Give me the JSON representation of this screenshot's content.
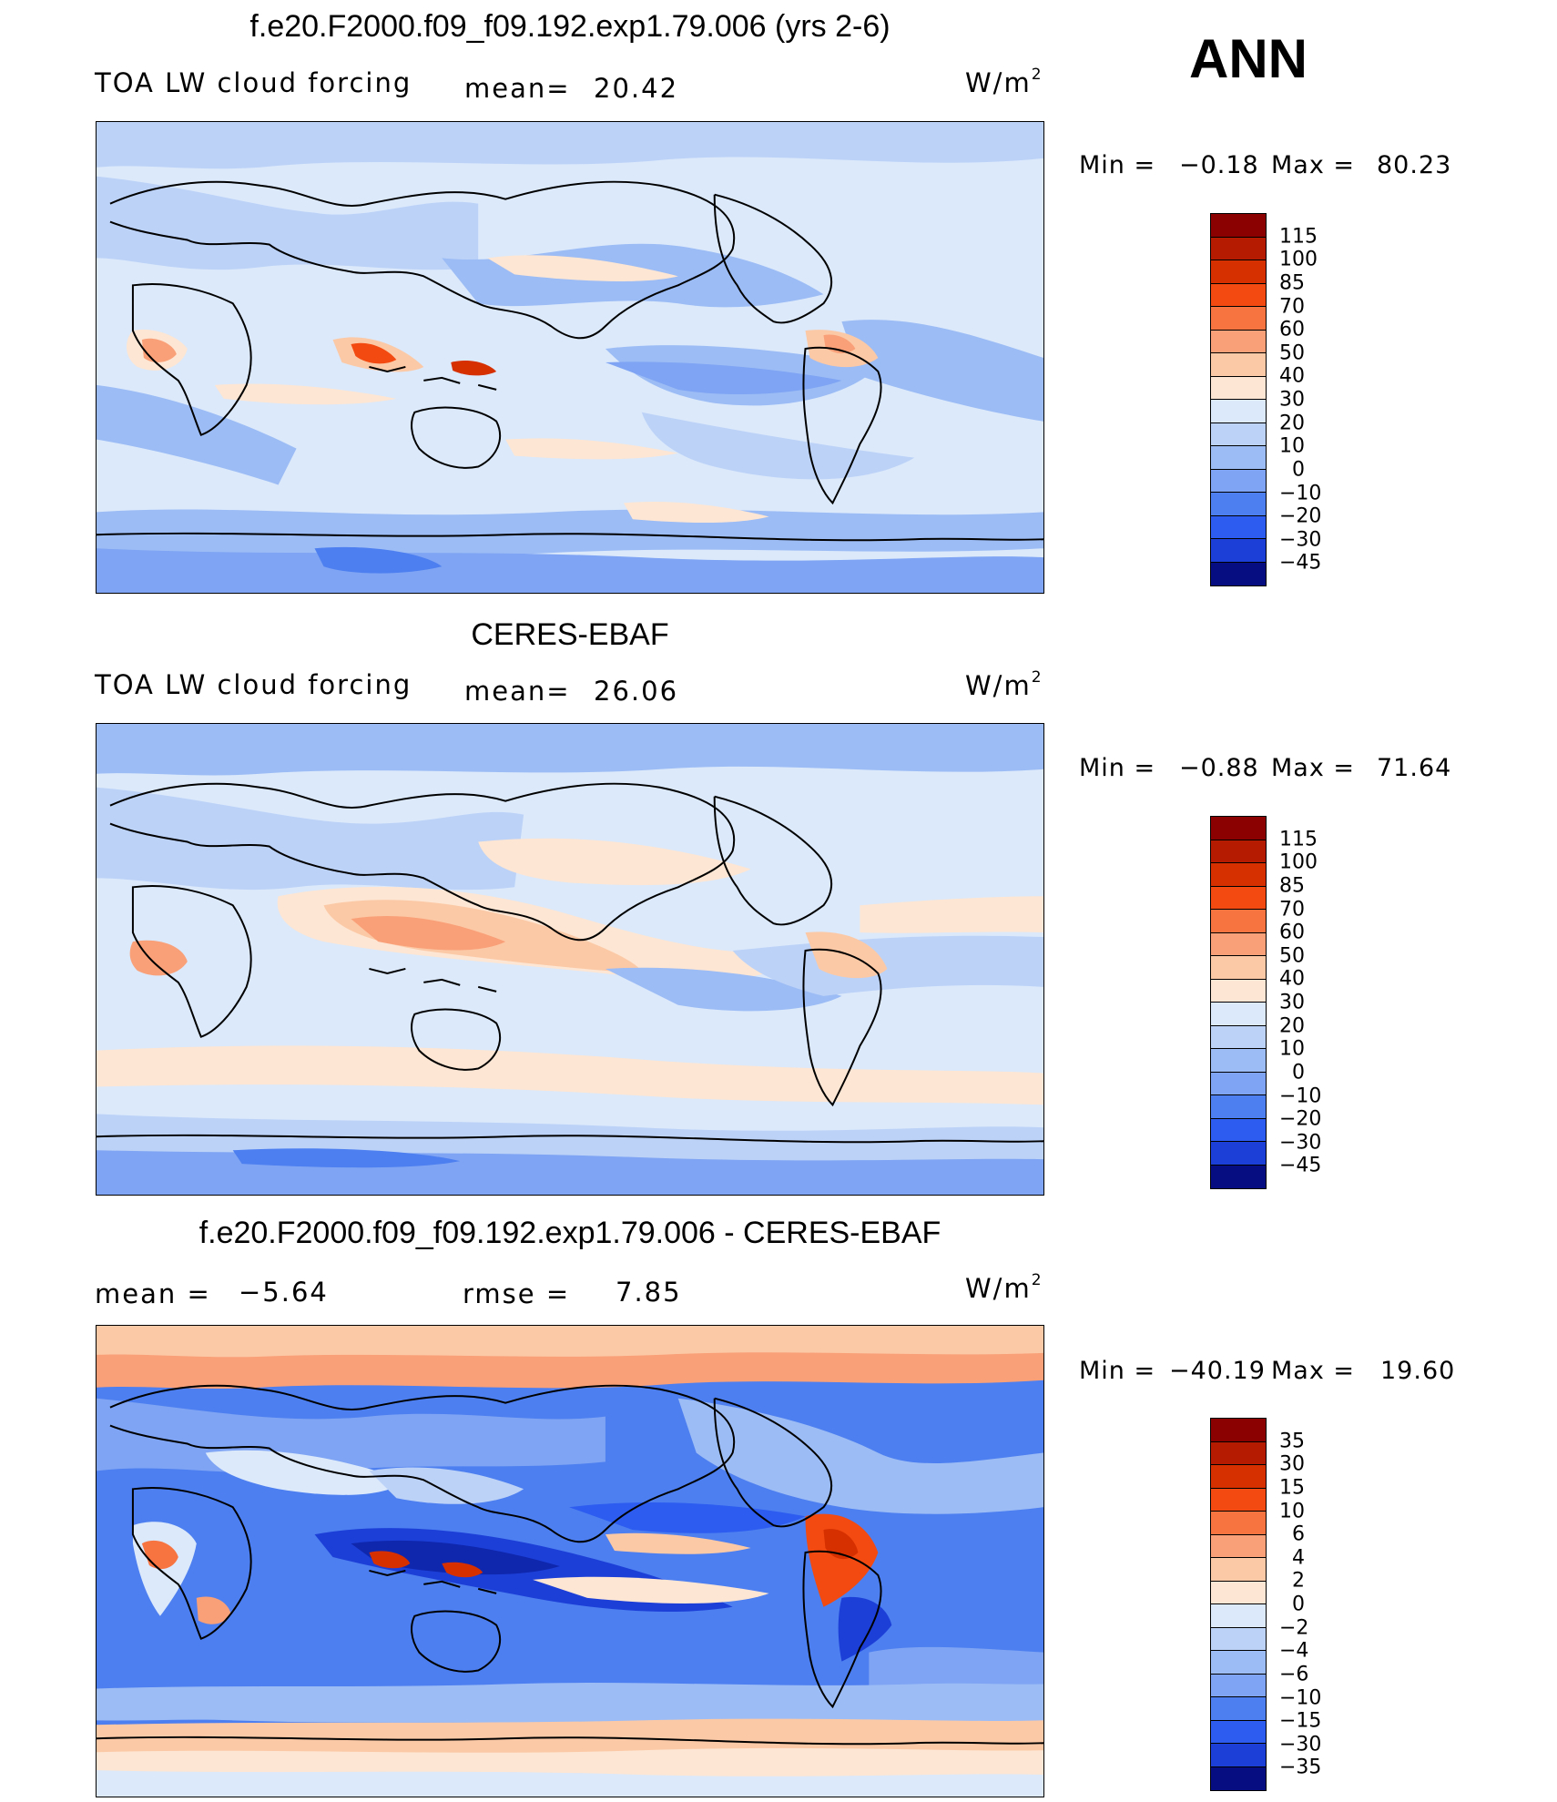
{
  "season": "ANN",
  "units_text": "W/m",
  "units_exp": "2",
  "panels": [
    {
      "title": "f.e20.F2000.f09_f09.192.exp1.79.006 (yrs 2-6)",
      "left_label": "TOA LW cloud forcing",
      "stat_label": "mean=",
      "stat_value": "20.42",
      "min_label": "Min =",
      "min_value": "−0.18",
      "max_label": "Max =",
      "max_value": "80.23"
    },
    {
      "title": "CERES-EBAF",
      "left_label": "TOA LW cloud forcing",
      "stat_label": "mean=",
      "stat_value": "26.06",
      "min_label": "Min =",
      "min_value": "−0.88",
      "max_label": "Max =",
      "max_value": "71.64"
    },
    {
      "title": "f.e20.F2000.f09_f09.192.exp1.79.006 - CERES-EBAF",
      "left_label": "mean =",
      "left_value": "−5.64",
      "stat_label": "rmse =",
      "stat_value": "7.85",
      "min_label": "Min =",
      "min_value": "−40.19",
      "max_label": "Max =",
      "max_value": "19.60"
    }
  ],
  "colorbar_abs": {
    "colors": [
      "#8b0000",
      "#b51b00",
      "#d63000",
      "#f24a10",
      "#f77340",
      "#f9a078",
      "#fcc9a6",
      "#fde6d3",
      "#dbe9fb",
      "#bcd2f7",
      "#9cbcf5",
      "#7ea4f3",
      "#4d7ff0",
      "#2c5cf0",
      "#1c3fd8",
      "#0f27ad",
      "#050d80"
    ],
    "ticks": [
      "115",
      "100",
      "85",
      "70",
      "60",
      "50",
      "40",
      "30",
      "20",
      "10",
      "0",
      "−10",
      "−20",
      "−30",
      "−45"
    ]
  },
  "colorbar_diff": {
    "colors": [
      "#8b0000",
      "#b51b00",
      "#d63000",
      "#f24a10",
      "#f77340",
      "#f9a078",
      "#fcc9a6",
      "#fde6d3",
      "#dbe9fb",
      "#bcd2f7",
      "#9cbcf5",
      "#7ea4f3",
      "#4d7ff0",
      "#2c5cf0",
      "#1c3fd8",
      "#0f27ad",
      "#050d80"
    ],
    "ticks": [
      "35",
      "30",
      "15",
      "10",
      "6",
      "4",
      "2",
      "0",
      "−2",
      "−4",
      "−6",
      "−10",
      "−15",
      "−30",
      "−35"
    ]
  }
}
